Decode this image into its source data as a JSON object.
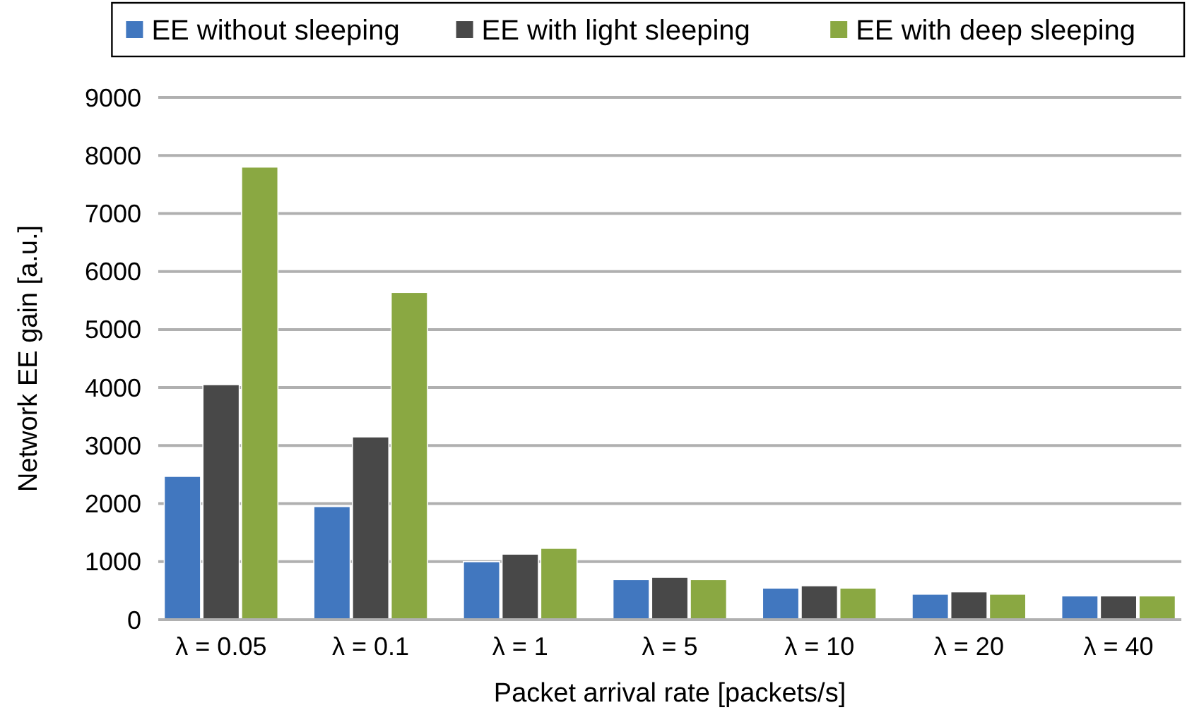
{
  "chart_data": {
    "type": "bar",
    "xlabel": "Packet arrival rate [packets/s]",
    "ylabel": "Network EE gain [a.u.]",
    "categories": [
      "λ = 0.05",
      "λ = 0.1",
      "λ = 1",
      "λ = 5",
      "λ = 10",
      "λ = 20",
      "λ = 40"
    ],
    "series": [
      {
        "name": "EE without sleeping",
        "color": "#4177bf",
        "values": [
          2470,
          1950,
          1000,
          690,
          545,
          440,
          410
        ]
      },
      {
        "name": "EE with light sleeping",
        "color": "#484848",
        "values": [
          4050,
          3150,
          1130,
          730,
          585,
          480,
          410
        ]
      },
      {
        "name": "EE with deep sleeping",
        "color": "#8aa842",
        "values": [
          7800,
          5640,
          1230,
          690,
          545,
          440,
          410
        ]
      }
    ],
    "ylim": [
      0,
      9000
    ],
    "yticks": [
      0,
      1000,
      2000,
      3000,
      4000,
      5000,
      6000,
      7000,
      8000,
      9000
    ],
    "grid": "y",
    "legend": "top"
  }
}
